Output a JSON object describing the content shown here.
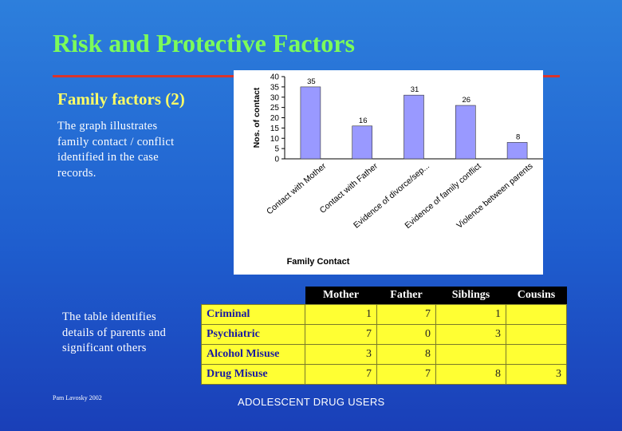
{
  "slide": {
    "title": "Risk and Protective Factors",
    "subtitle": "Family factors (2)",
    "graph_description": "The graph illustrates family contact / conflict identified in the case records.",
    "table_description": "The table identifies details of parents and significant others",
    "footer_left": "Pam Lavosky 2002",
    "footer_center": "ADOLESCENT DRUG USERS"
  },
  "colors": {
    "title": "#7cfc5a",
    "subtitle": "#ffff66",
    "rule": "#d9342b",
    "bar_fill": "#9999ff",
    "table_cell": "#ffff33"
  },
  "chart_data": {
    "type": "bar",
    "title": "",
    "xlabel": "Family Contact",
    "ylabel": "Nos. of contact",
    "ylim": [
      0,
      40
    ],
    "yticks": [
      0,
      5,
      10,
      15,
      20,
      25,
      30,
      35,
      40
    ],
    "categories": [
      "Contact with Mother",
      "Contact with Father",
      "Evidence of divorce/sep...",
      "Evidence of family conflict",
      "Violence between parents"
    ],
    "values": [
      35,
      16,
      31,
      26,
      8
    ],
    "data_labels": [
      "35",
      "16",
      "31",
      "26",
      "8"
    ],
    "grid": false,
    "legend": "none"
  },
  "table": {
    "columns": [
      "Mother",
      "Father",
      "Siblings",
      "Cousins"
    ],
    "rows": [
      {
        "label": "Criminal",
        "values": [
          "1",
          "7",
          "1",
          ""
        ]
      },
      {
        "label": "Psychiatric",
        "values": [
          "7",
          "0",
          "3",
          ""
        ]
      },
      {
        "label": "Alcohol Misuse",
        "values": [
          "3",
          "8",
          "",
          ""
        ]
      },
      {
        "label": "Drug Misuse",
        "values": [
          "7",
          "7",
          "8",
          "3"
        ]
      }
    ]
  }
}
